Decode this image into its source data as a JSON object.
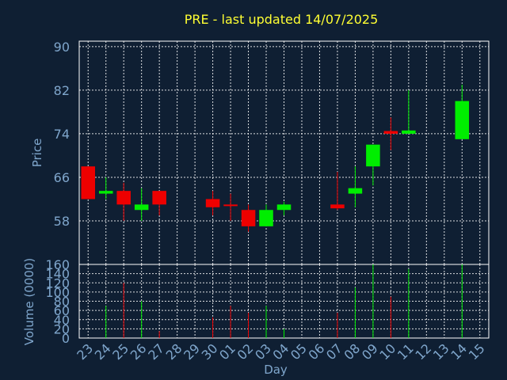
{
  "chart_data": {
    "type": "candlestick",
    "title": "PRE - last updated 14/07/2025",
    "xlabel": "Day",
    "price_panel": {
      "ylabel": "Price",
      "ylim": [
        50,
        91
      ],
      "yticks": [
        58,
        66,
        74,
        82,
        90
      ]
    },
    "volume_panel": {
      "ylabel": "Volume (0000)",
      "ylim": [
        0,
        160
      ],
      "yticks": [
        0,
        20,
        40,
        60,
        80,
        100,
        120,
        140,
        160
      ]
    },
    "x_tick_labels": [
      "23",
      "24",
      "25",
      "26",
      "27",
      "28",
      "29",
      "30",
      "01",
      "02",
      "03",
      "04",
      "05",
      "06",
      "07",
      "08",
      "09",
      "10",
      "11",
      "12",
      "13",
      "14",
      "15"
    ],
    "up_color": "#00ee00",
    "down_color": "#ee0000",
    "candles": [
      {
        "day": "23",
        "open": 68,
        "high": 68,
        "low": 62,
        "close": 62,
        "volume": 0
      },
      {
        "day": "24",
        "open": 63,
        "high": 66,
        "low": 62,
        "close": 63.5,
        "volume": 70
      },
      {
        "day": "25",
        "open": 63.5,
        "high": 65,
        "low": 58,
        "close": 61,
        "volume": 120
      },
      {
        "day": "26",
        "open": 60,
        "high": 64,
        "low": 58,
        "close": 61,
        "volume": 80
      },
      {
        "day": "27",
        "open": 63.5,
        "high": 63.5,
        "low": 59,
        "close": 61,
        "volume": 15
      },
      {
        "day": "30",
        "open": 62,
        "high": 63.5,
        "low": 59,
        "close": 60.5,
        "volume": 45
      },
      {
        "day": "01",
        "open": 61,
        "high": 63,
        "low": 58,
        "close": 60.8,
        "volume": 70
      },
      {
        "day": "02",
        "open": 60,
        "high": 61,
        "low": 56,
        "close": 57,
        "volume": 55
      },
      {
        "day": "03",
        "open": 57,
        "high": 61,
        "low": 57,
        "close": 60,
        "volume": 70
      },
      {
        "day": "04",
        "open": 60,
        "high": 61.5,
        "low": 59,
        "close": 61,
        "volume": 20
      },
      {
        "day": "07",
        "open": 61,
        "high": 67,
        "low": 60,
        "close": 60.3,
        "volume": 55
      },
      {
        "day": "08",
        "open": 63,
        "high": 68,
        "low": 60.5,
        "close": 64,
        "volume": 110
      },
      {
        "day": "09",
        "open": 68,
        "high": 72,
        "low": 64.5,
        "close": 72,
        "volume": 160
      },
      {
        "day": "10",
        "open": 74.5,
        "high": 77,
        "low": 71,
        "close": 74,
        "volume": 90
      },
      {
        "day": "11",
        "open": 74,
        "high": 82,
        "low": 74,
        "close": 74.6,
        "volume": 150
      },
      {
        "day": "14",
        "open": 73,
        "high": 83,
        "low": 73,
        "close": 80,
        "volume": 160
      }
    ]
  }
}
